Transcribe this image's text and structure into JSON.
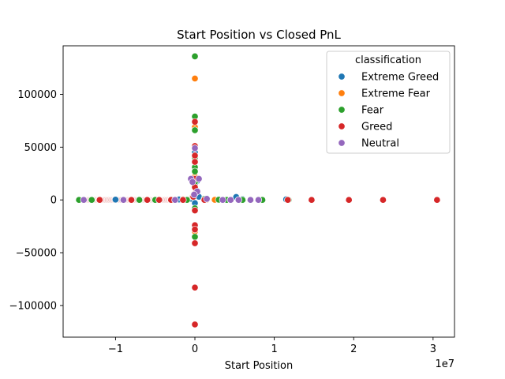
{
  "chart_data": {
    "type": "scatter",
    "title": "Start Position vs Closed PnL",
    "xlabel": "Start Position",
    "ylabel": "",
    "x_offset_label": "1e7",
    "xlim": [
      -16600000,
      32700000
    ],
    "ylim": [
      -130000,
      146000
    ],
    "x_ticks": [
      {
        "value": -10000000,
        "label": "−1"
      },
      {
        "value": 0,
        "label": "0"
      },
      {
        "value": 10000000,
        "label": "1"
      },
      {
        "value": 20000000,
        "label": "2"
      },
      {
        "value": 30000000,
        "label": "3"
      }
    ],
    "y_ticks": [
      {
        "value": -100000,
        "label": "−100000"
      },
      {
        "value": -50000,
        "label": "−50000"
      },
      {
        "value": 0,
        "label": "0"
      },
      {
        "value": 50000,
        "label": "50000"
      },
      {
        "value": 100000,
        "label": "100000"
      }
    ],
    "grid": false,
    "legend_title": "classification",
    "legend_position": "top-right",
    "series": [
      {
        "name": "Extreme Greed",
        "color": "#1f77b4",
        "points": [
          [
            0,
            45000
          ],
          [
            200000,
            9000
          ],
          [
            500000,
            3000
          ],
          [
            1500000,
            1500
          ],
          [
            3000000,
            500
          ],
          [
            5200000,
            2800
          ],
          [
            6000000,
            700
          ],
          [
            8000000,
            300
          ],
          [
            11500000,
            500
          ],
          [
            -500000,
            1200
          ],
          [
            -2000000,
            400
          ],
          [
            -4500000,
            200
          ],
          [
            -7000000,
            150
          ],
          [
            -10000000,
            300
          ],
          [
            300000,
            18000
          ],
          [
            0,
            -3000
          ],
          [
            0,
            15000
          ]
        ]
      },
      {
        "name": "Extreme Fear",
        "color": "#ff7f0e",
        "points": [
          [
            0,
            115000
          ],
          [
            0,
            69000
          ],
          [
            0,
            31000
          ],
          [
            0,
            22000
          ],
          [
            0,
            -30000
          ],
          [
            0,
            -8000
          ],
          [
            0,
            12000
          ],
          [
            -300000,
            3000
          ],
          [
            -1500000,
            500
          ],
          [
            1500000,
            300
          ],
          [
            2500000,
            100
          ],
          [
            -6000000,
            0
          ]
        ]
      },
      {
        "name": "Fear",
        "color": "#2ca02c",
        "points": [
          [
            0,
            136000
          ],
          [
            0,
            79000
          ],
          [
            0,
            66000
          ],
          [
            0,
            40000
          ],
          [
            0,
            31000
          ],
          [
            0,
            27000
          ],
          [
            0,
            17000
          ],
          [
            0,
            -8000
          ],
          [
            0,
            -35000
          ],
          [
            0,
            -25000
          ],
          [
            -14600000,
            0
          ],
          [
            -13000000,
            0
          ],
          [
            -12000000,
            0
          ],
          [
            -5000000,
            0
          ],
          [
            -1000000,
            0
          ],
          [
            3000000,
            200
          ],
          [
            4000000,
            0
          ],
          [
            6000000,
            0
          ],
          [
            8500000,
            0
          ],
          [
            11800000,
            0
          ],
          [
            1200000,
            1000
          ],
          [
            -2500000,
            0
          ],
          [
            -7000000,
            0
          ]
        ]
      },
      {
        "name": "Greed",
        "color": "#d62728",
        "points": [
          [
            0,
            74000
          ],
          [
            0,
            51000
          ],
          [
            0,
            42000
          ],
          [
            0,
            36000
          ],
          [
            0,
            20000
          ],
          [
            0,
            12000
          ],
          [
            0,
            6000
          ],
          [
            0,
            -10000
          ],
          [
            0,
            -24000
          ],
          [
            0,
            -28000
          ],
          [
            0,
            -41000
          ],
          [
            0,
            -83000
          ],
          [
            0,
            -118000
          ],
          [
            -200000,
            3000
          ],
          [
            -1500000,
            0
          ],
          [
            -3000000,
            0
          ],
          [
            -4500000,
            0
          ],
          [
            -6000000,
            0
          ],
          [
            -8000000,
            0
          ],
          [
            1200000,
            0
          ],
          [
            11700000,
            0
          ],
          [
            14700000,
            0
          ],
          [
            19400000,
            0
          ],
          [
            23700000,
            0
          ],
          [
            30500000,
            0
          ],
          [
            -12000000,
            0
          ]
        ]
      },
      {
        "name": "Neutral",
        "color": "#9467bd",
        "points": [
          [
            0,
            49000
          ],
          [
            -500000,
            20000
          ],
          [
            500000,
            20000
          ],
          [
            -300000,
            17000
          ],
          [
            300000,
            8000
          ],
          [
            -100000,
            5000
          ],
          [
            1500000,
            1000
          ],
          [
            3500000,
            0
          ],
          [
            4500000,
            0
          ],
          [
            5500000,
            0
          ],
          [
            7000000,
            0
          ],
          [
            8000000,
            0
          ],
          [
            -2500000,
            0
          ],
          [
            -9000000,
            0
          ],
          [
            -14000000,
            0
          ]
        ]
      }
    ]
  }
}
